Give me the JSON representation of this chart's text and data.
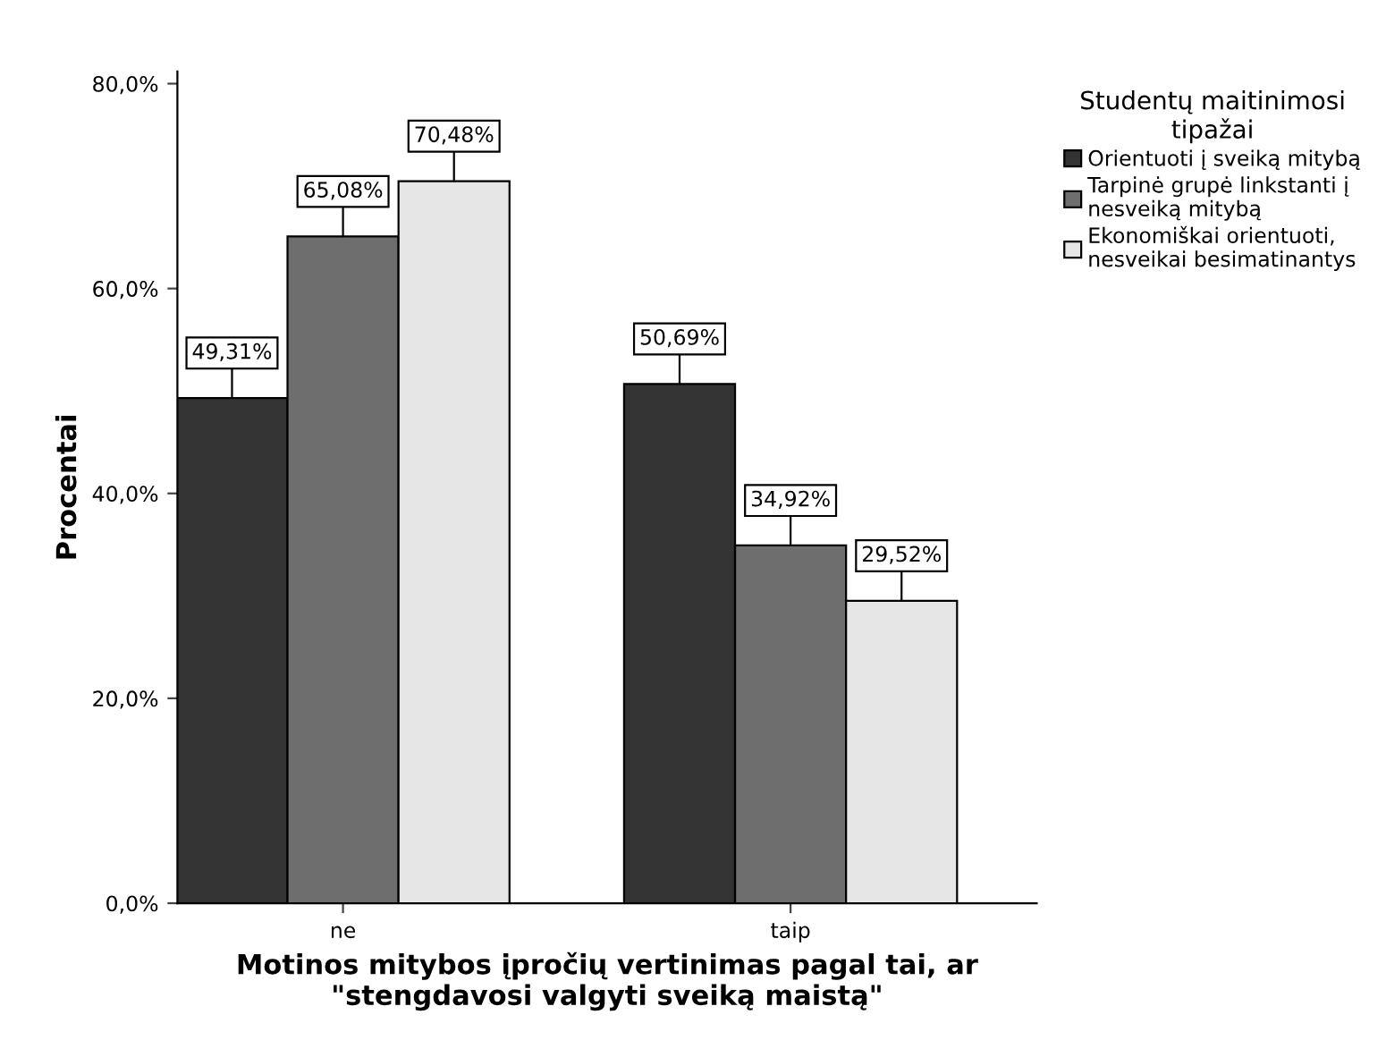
{
  "chart_data": {
    "type": "bar",
    "xlabel": "Motinos mitybos įpročių vertinimas pagal tai, ar\n\"stengdavosi valgyti sveiką maistą\"",
    "ylabel": "Procentai",
    "legend_title": "Studentų maitinimosi\ntipažai",
    "categories": [
      "ne",
      "taip"
    ],
    "series": [
      {
        "name": "Orientuoti į sveiką mitybą",
        "color": "#333333",
        "values": [
          49.31,
          50.69
        ],
        "value_labels": [
          "49,31%",
          "50,69%"
        ]
      },
      {
        "name": "Tarpinė grupė linkstanti į\nnesveiką mitybą",
        "color": "#6e6e6e",
        "values": [
          65.08,
          34.92
        ],
        "value_labels": [
          "65,08%",
          "34,92%"
        ]
      },
      {
        "name": "Ekonomiškai orientuoti,\nnesveikai besimatinantys",
        "color": "#e6e6e6",
        "values": [
          70.48,
          29.52
        ],
        "value_labels": [
          "70,48%",
          "29,52%"
        ]
      }
    ],
    "ylim": [
      0,
      81.2
    ],
    "yticks": [
      {
        "value": 0,
        "label": "0,0%"
      },
      {
        "value": 20,
        "label": "20,0%"
      },
      {
        "value": 40,
        "label": "40,0%"
      },
      {
        "value": 60,
        "label": "60,0%"
      },
      {
        "value": 80,
        "label": "80,0%"
      }
    ],
    "grid": false,
    "legend": "top right"
  }
}
